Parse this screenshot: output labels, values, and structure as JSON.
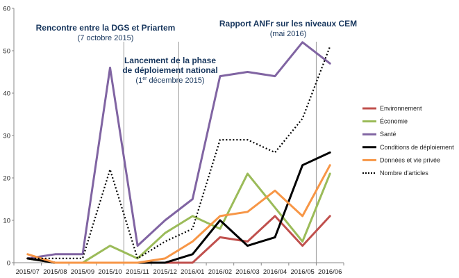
{
  "chart_data": {
    "type": "line",
    "title": "",
    "xlabel": "",
    "ylabel": "",
    "ylim": [
      0,
      60
    ],
    "yticks": [
      0,
      10,
      20,
      30,
      40,
      50,
      60
    ],
    "grid": false,
    "legend_position": "right",
    "categories": [
      "2015/07",
      "2015/08",
      "2015/09",
      "2015/10",
      "2015/11",
      "2015/12",
      "2016/01",
      "2016/02",
      "2016/03",
      "2016/04",
      "2016/05",
      "2016/06"
    ],
    "series": [
      {
        "name": "Environnement",
        "color": "#c0504d",
        "dash": "none",
        "values": [
          1,
          0,
          0,
          0,
          0,
          0,
          0,
          6,
          5,
          11,
          4,
          11
        ]
      },
      {
        "name": "Économie",
        "color": "#9bbb59",
        "dash": "none",
        "values": [
          1,
          0,
          0,
          4,
          1,
          7,
          11,
          8,
          21,
          13,
          5,
          21
        ]
      },
      {
        "name": "Santé",
        "color": "#8064a2",
        "dash": "none",
        "values": [
          1,
          2,
          2,
          46,
          4,
          10,
          15,
          44,
          45,
          44,
          52,
          47
        ]
      },
      {
        "name": "Conditions de déploiement",
        "color": "#000000",
        "dash": "none",
        "values": [
          1,
          0,
          0,
          0,
          0,
          0,
          2,
          10,
          4,
          6,
          23,
          26
        ]
      },
      {
        "name": "Données et vie privée",
        "color": "#f79646",
        "dash": "none",
        "values": [
          2,
          0,
          0,
          0,
          0,
          1,
          5,
          11,
          12,
          17,
          11,
          23
        ]
      },
      {
        "name": "Nombre d'articles",
        "color": "#000000",
        "dash": "dotted",
        "values": [
          1,
          1,
          1,
          22,
          1,
          5,
          8,
          29,
          29,
          26,
          34,
          51
        ]
      }
    ],
    "annotations": [
      {
        "category": "2015/10",
        "title": "Rencontre entre la DGS et Priartem",
        "subtitle": "(7 octobre 2015)"
      },
      {
        "category": "2015/12",
        "title_lines": [
          "Lancement de la phase",
          "de déploiement national"
        ],
        "subtitle_pre": "(1",
        "subtitle_sup": "er",
        "subtitle_post": " décembre 2015)"
      },
      {
        "category": "2016/05",
        "title": "Rapport ANFr sur les niveaux CEM",
        "subtitle": "(mai 2016)"
      }
    ]
  }
}
